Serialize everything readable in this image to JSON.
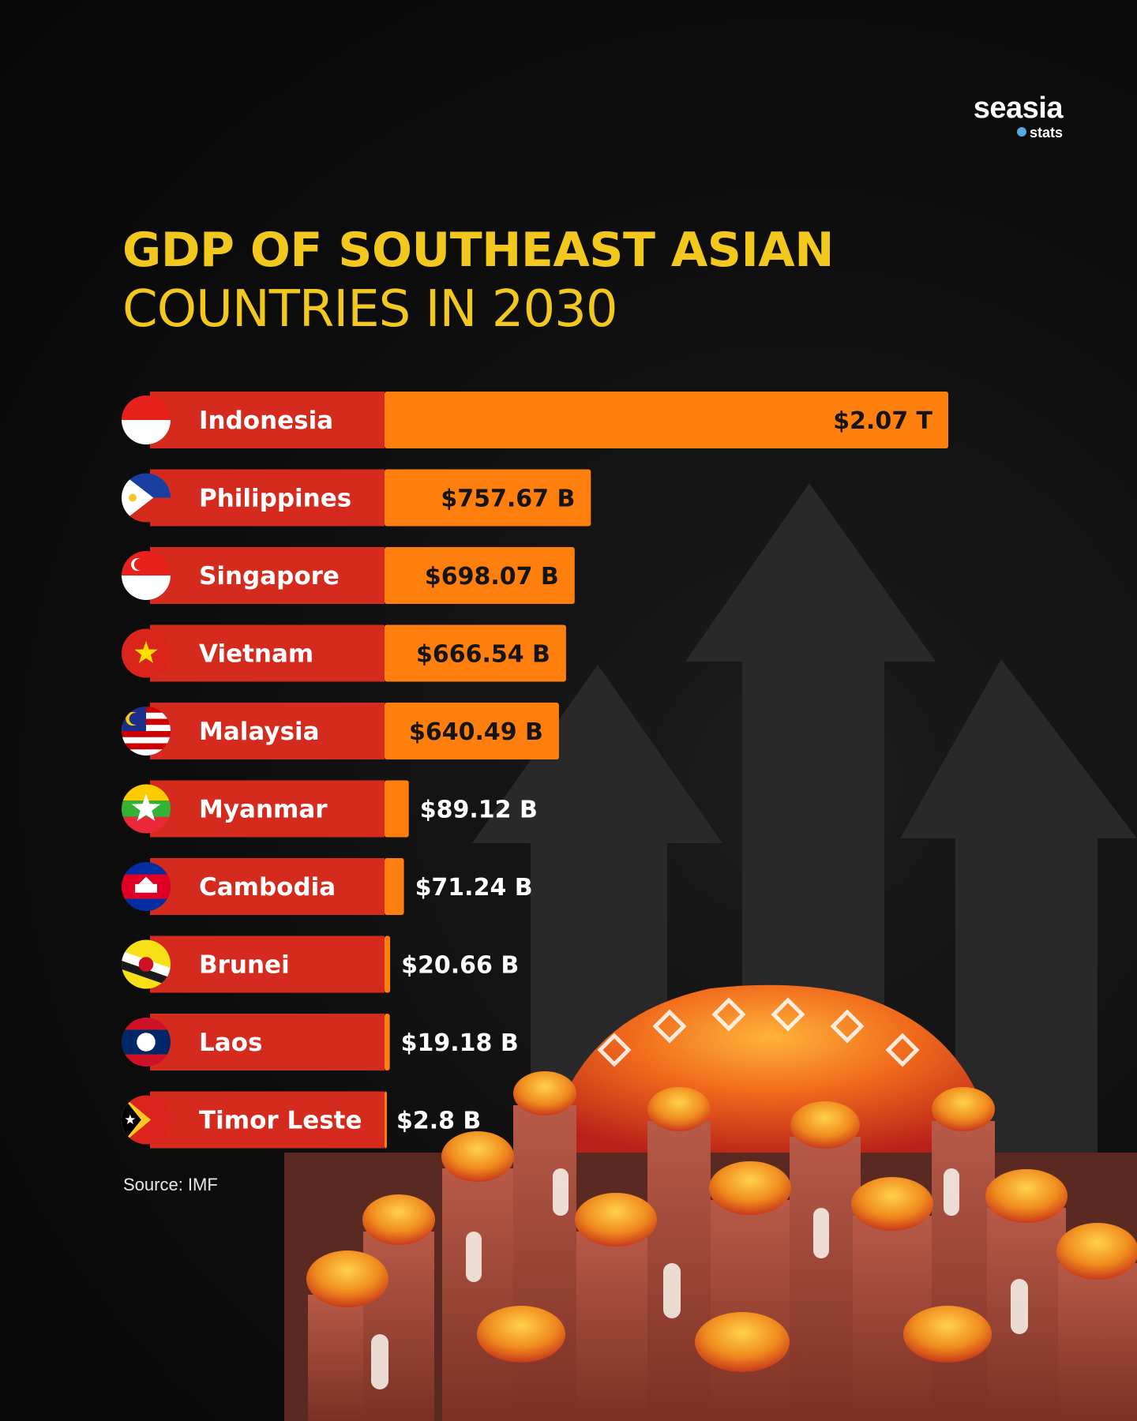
{
  "brand": {
    "name": "seasia",
    "sub": "stats"
  },
  "header": {
    "title_line1": "GDP OF SOUTHEAST ASIAN",
    "title_line2": "COUNTRIES IN 2030"
  },
  "source": "Source: IMF",
  "colors": {
    "title": "#f2c81e",
    "label_band": "#d42b1e",
    "value_bar": "#ff7f0e",
    "background": "#0b0b0b"
  },
  "chart_data": {
    "type": "bar",
    "orientation": "horizontal",
    "title": "GDP OF SOUTHEAST ASIAN COUNTRIES IN 2030",
    "unit": "USD",
    "categories": [
      "Indonesia",
      "Philippines",
      "Singapore",
      "Vietnam",
      "Malaysia",
      "Myanmar",
      "Cambodia",
      "Brunei",
      "Laos",
      "Timor Leste"
    ],
    "values_billion": [
      2070,
      757.67,
      698.07,
      666.54,
      640.49,
      89.12,
      71.24,
      20.66,
      19.18,
      2.8
    ],
    "value_labels": [
      "$2.07 T",
      "$757.67 B",
      "$698.07 B",
      "$666.54 B",
      "$640.49 B",
      "$89.12 B",
      "$71.24 B",
      "$20.66 B",
      "$19.18 B",
      "$2.8 B"
    ],
    "flag_icons": [
      "indonesia-flag-icon",
      "philippines-flag-icon",
      "singapore-flag-icon",
      "vietnam-flag-icon",
      "malaysia-flag-icon",
      "myanmar-flag-icon",
      "cambodia-flag-icon",
      "brunei-flag-icon",
      "laos-flag-icon",
      "timor-leste-flag-icon"
    ],
    "legend": "none",
    "grid": false
  }
}
